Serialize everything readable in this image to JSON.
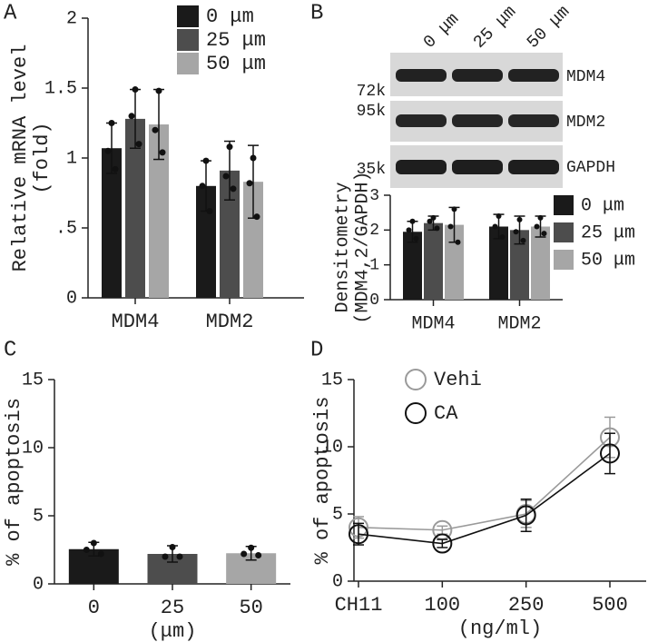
{
  "panels": [
    "A",
    "B",
    "C",
    "D"
  ],
  "blot": {
    "lanes": [
      "0 μm",
      "25 μm",
      "50 μm"
    ],
    "rows": [
      {
        "size": "72k",
        "protein": "MDM4"
      },
      {
        "size": "95k",
        "protein": "MDM2"
      },
      {
        "size": "35k",
        "protein": "GAPDH"
      }
    ]
  },
  "chart_data": [
    {
      "type": "bar",
      "ylabel": [
        "Relative mRNA level",
        "(fold)"
      ],
      "categories": [
        "MDM4",
        "MDM2"
      ],
      "ylim": [
        0,
        2
      ],
      "yticks": [
        0,
        {
          "value": 0.5,
          "label": ".5"
        },
        1,
        1.5,
        2
      ],
      "legend": "top-right",
      "series": [
        {
          "name": "0 μm",
          "color": "#1a1a1a",
          "values": [
            1.07,
            0.8
          ],
          "errors": [
            0.18,
            0.18
          ],
          "points": [
            [
              1.25,
              1.05,
              0.92
            ],
            [
              0.98,
              0.8,
              0.62
            ]
          ]
        },
        {
          "name": "25 μm",
          "color": "#4d4d4d",
          "values": [
            1.28,
            0.91
          ],
          "errors": [
            0.21,
            0.21
          ],
          "points": [
            [
              1.49,
              1.3,
              1.1
            ],
            [
              1.08,
              0.87,
              0.78
            ]
          ]
        },
        {
          "name": "50 μm",
          "color": "#a6a6a6",
          "values": [
            1.24,
            0.83
          ],
          "errors": [
            0.25,
            0.26
          ],
          "points": [
            [
              1.48,
              1.2,
              1.04
            ],
            [
              1.0,
              0.82,
              0.58
            ]
          ]
        }
      ]
    },
    {
      "type": "bar",
      "ylabel": [
        "Densitometry",
        "(MDM4,2/GAPDH)"
      ],
      "categories": [
        "MDM4",
        "MDM2"
      ],
      "ylim": [
        0,
        3
      ],
      "yticks": [
        0,
        1,
        2,
        3
      ],
      "legend": "right",
      "series": [
        {
          "name": "0 μm",
          "color": "#1a1a1a",
          "values": [
            1.95,
            2.1
          ],
          "errors": [
            0.3,
            0.35
          ],
          "points": [
            [
              2.25,
              2.0,
              1.75
            ],
            [
              2.4,
              2.1,
              1.8
            ]
          ]
        },
        {
          "name": "25 μm",
          "color": "#4d4d4d",
          "values": [
            2.2,
            2.0
          ],
          "errors": [
            0.2,
            0.4
          ],
          "points": [
            [
              2.35,
              2.25,
              2.05
            ],
            [
              2.3,
              1.95,
              1.7
            ]
          ]
        },
        {
          "name": "50 μm",
          "color": "#a6a6a6",
          "values": [
            2.15,
            2.1
          ],
          "errors": [
            0.5,
            0.3
          ],
          "points": [
            [
              2.6,
              2.1,
              1.65
            ],
            [
              2.35,
              2.1,
              1.9
            ]
          ]
        }
      ]
    },
    {
      "type": "bar",
      "ylabel": [
        "% of apoptosis"
      ],
      "xlabel": "(μm)",
      "categories": [
        "0",
        "25",
        "50"
      ],
      "ylim": [
        0,
        15
      ],
      "yticks": [
        0,
        5,
        10,
        15
      ],
      "values": [
        2.55,
        2.2,
        2.25
      ],
      "errors": [
        0.5,
        0.6,
        0.5
      ],
      "colors": [
        "#1a1a1a",
        "#4d4d4d",
        "#a6a6a6"
      ],
      "points": [
        [
          3.0,
          2.5,
          2.2
        ],
        [
          2.7,
          2.0,
          2.0
        ],
        [
          2.65,
          2.2,
          2.1
        ]
      ]
    },
    {
      "type": "line",
      "ylabel": [
        "% of apoptosis"
      ],
      "xlabel": "(ng/ml)",
      "categories": [
        "CH11",
        "100",
        "250",
        "500"
      ],
      "ylim": [
        0,
        15
      ],
      "yticks": [
        0,
        5,
        10,
        15
      ],
      "legend": "top-left",
      "series": [
        {
          "name": "Vehi",
          "color": "#9a9a9a",
          "values": [
            4.0,
            3.8,
            5.0,
            10.7
          ],
          "errors": [
            0.8,
            0.3,
            1.0,
            1.5
          ]
        },
        {
          "name": "CA",
          "color": "#111111",
          "values": [
            3.5,
            2.8,
            4.9,
            9.5
          ],
          "errors": [
            0.8,
            0.3,
            1.2,
            1.5
          ]
        }
      ]
    }
  ]
}
